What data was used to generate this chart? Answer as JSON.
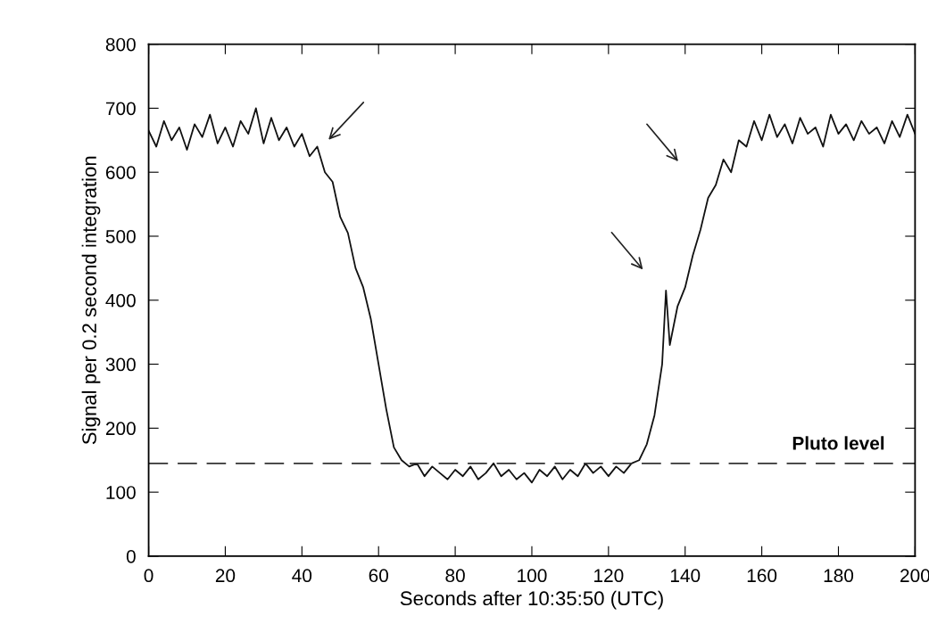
{
  "chart_data": {
    "type": "line",
    "xlabel": "Seconds after 10:35:50 (UTC)",
    "ylabel": "Signal per 0.2 second integration",
    "xlim": [
      0,
      200
    ],
    "ylim": [
      0,
      800
    ],
    "xticks": [
      0,
      20,
      40,
      60,
      80,
      100,
      120,
      140,
      160,
      180,
      200
    ],
    "yticks": [
      0,
      100,
      200,
      300,
      400,
      500,
      600,
      700,
      800
    ],
    "grid": false,
    "marker": "none",
    "line_style": "solid",
    "x": [
      0,
      2,
      4,
      6,
      8,
      10,
      12,
      14,
      16,
      18,
      20,
      22,
      24,
      26,
      28,
      30,
      32,
      34,
      36,
      38,
      40,
      42,
      44,
      46,
      48,
      50,
      52,
      54,
      56,
      58,
      60,
      62,
      64,
      66,
      68,
      70,
      72,
      74,
      76,
      78,
      80,
      82,
      84,
      86,
      88,
      90,
      92,
      94,
      96,
      98,
      100,
      102,
      104,
      106,
      108,
      110,
      112,
      114,
      116,
      118,
      120,
      122,
      124,
      126,
      128,
      130,
      132,
      134,
      135,
      136,
      138,
      140,
      142,
      144,
      146,
      148,
      150,
      152,
      154,
      156,
      158,
      160,
      162,
      164,
      166,
      168,
      170,
      172,
      174,
      176,
      178,
      180,
      182,
      184,
      186,
      188,
      190,
      192,
      194,
      196,
      198,
      200
    ],
    "series": [
      {
        "color": "#111111",
        "values": [
          665,
          640,
          680,
          650,
          670,
          635,
          675,
          655,
          690,
          645,
          670,
          640,
          680,
          660,
          700,
          645,
          685,
          650,
          670,
          640,
          660,
          625,
          640,
          600,
          585,
          530,
          505,
          450,
          420,
          370,
          300,
          230,
          170,
          150,
          140,
          145,
          125,
          140,
          130,
          120,
          135,
          125,
          140,
          120,
          130,
          145,
          125,
          135,
          120,
          130,
          115,
          135,
          125,
          140,
          120,
          135,
          125,
          145,
          130,
          140,
          125,
          140,
          130,
          145,
          150,
          175,
          220,
          300,
          415,
          330,
          390,
          420,
          470,
          510,
          560,
          580,
          620,
          600,
          650,
          640,
          680,
          650,
          690,
          655,
          675,
          645,
          685,
          660,
          670,
          640,
          690,
          660,
          675,
          650,
          680,
          660,
          670,
          645,
          680,
          655,
          690,
          660
        ]
      }
    ],
    "ref_lines": [
      {
        "axis": "y",
        "value": 145,
        "label": "Pluto level",
        "color": "#333333",
        "line_style": "dashed"
      }
    ]
  }
}
